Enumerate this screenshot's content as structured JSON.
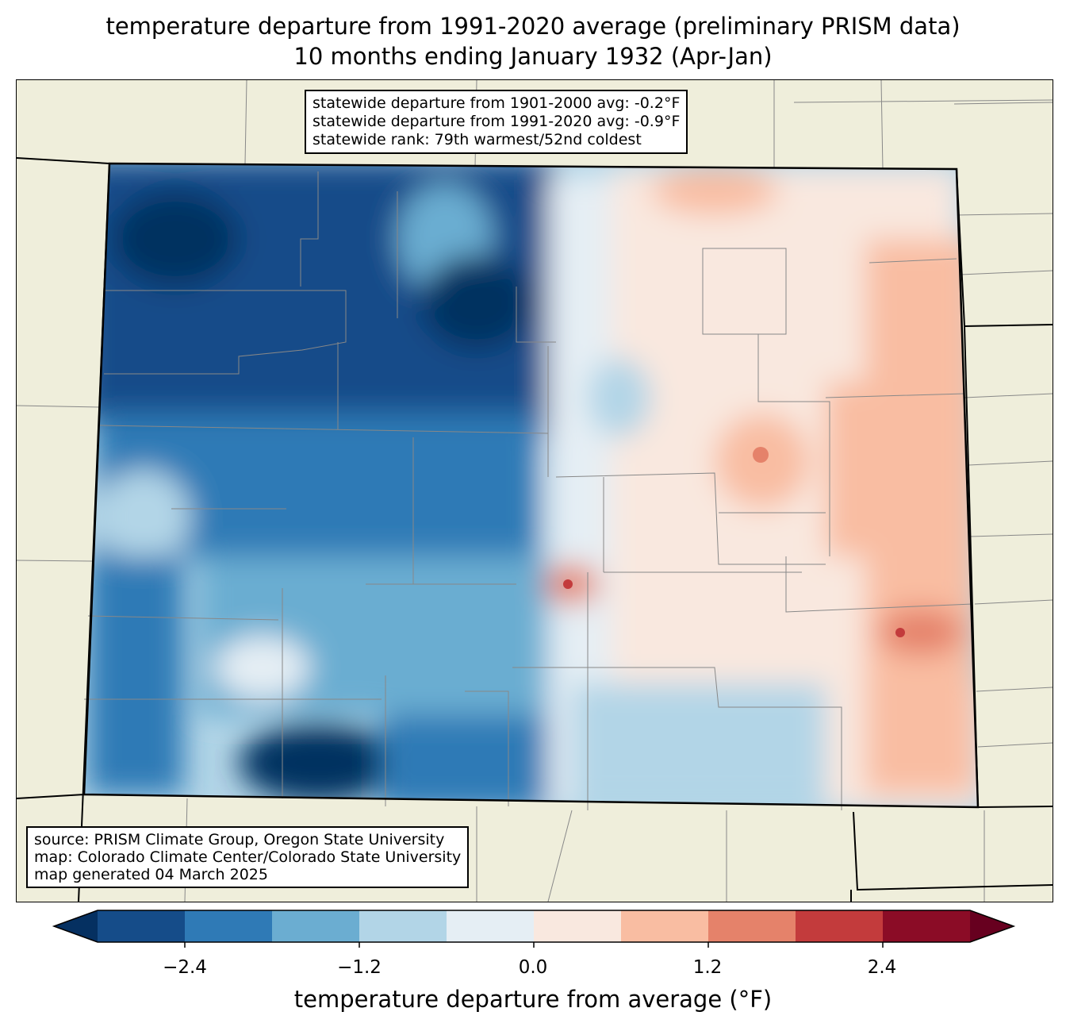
{
  "title": {
    "line1": "temperature departure from 1991-2020 average (preliminary PRISM data)",
    "line2": "10 months ending January 1932 (Apr-Jan)"
  },
  "stats": {
    "line1": "statewide departure from 1901-2000 avg: -0.2°F",
    "line2": "statewide departure from 1991-2020 avg: -0.9°F",
    "line3": "statewide rank: 79th warmest/52nd coldest"
  },
  "source": {
    "line1": "source: PRISM Climate Group, Oregon State University",
    "line2": "map: Colorado Climate Center/Colorado State University",
    "line3": "map generated 04 March 2025"
  },
  "colorbar": {
    "label": "temperature departure from average (°F)",
    "ticks": [
      "−2.4",
      "−1.2",
      "0.0",
      "1.2",
      "2.4"
    ],
    "levels": [
      -3.0,
      -2.4,
      -1.8,
      -1.2,
      -0.6,
      0.0,
      0.6,
      1.2,
      1.8,
      2.4,
      3.0
    ],
    "colors": [
      "#053061",
      "#154c89",
      "#2f7ab6",
      "#6badd1",
      "#b2d5e7",
      "#e5eef4",
      "#f9e8df",
      "#f9bda2",
      "#e5826a",
      "#c33b3c",
      "#8b0c26",
      "#67001f"
    ]
  }
}
